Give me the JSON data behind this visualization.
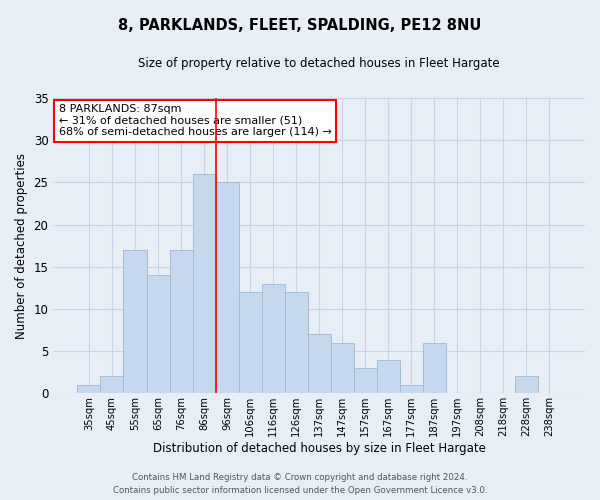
{
  "title": "8, PARKLANDS, FLEET, SPALDING, PE12 8NU",
  "subtitle": "Size of property relative to detached houses in Fleet Hargate",
  "xlabel": "Distribution of detached houses by size in Fleet Hargate",
  "ylabel": "Number of detached properties",
  "bar_labels": [
    "35sqm",
    "45sqm",
    "55sqm",
    "65sqm",
    "76sqm",
    "86sqm",
    "96sqm",
    "106sqm",
    "116sqm",
    "126sqm",
    "137sqm",
    "147sqm",
    "157sqm",
    "167sqm",
    "177sqm",
    "187sqm",
    "197sqm",
    "208sqm",
    "218sqm",
    "228sqm",
    "238sqm"
  ],
  "bar_heights": [
    1,
    2,
    17,
    14,
    17,
    26,
    25,
    12,
    13,
    12,
    7,
    6,
    3,
    4,
    1,
    6,
    0,
    0,
    0,
    2,
    0
  ],
  "bar_color": "#c5d8ed",
  "bar_edge_color": "#9bb8d8",
  "grid_color": "#c8d4e4",
  "background_color": "#e8eef6",
  "vline_x_index": 5,
  "vline_color": "red",
  "annotation_title": "8 PARKLANDS: 87sqm",
  "annotation_line1": "← 31% of detached houses are smaller (51)",
  "annotation_line2": "68% of semi-detached houses are larger (114) →",
  "annotation_box_color": "white",
  "annotation_box_edge": "red",
  "ylim": [
    0,
    35
  ],
  "yticks": [
    0,
    5,
    10,
    15,
    20,
    25,
    30,
    35
  ],
  "footer1": "Contains HM Land Registry data © Crown copyright and database right 2024.",
  "footer2": "Contains public sector information licensed under the Open Government Licence v3.0."
}
